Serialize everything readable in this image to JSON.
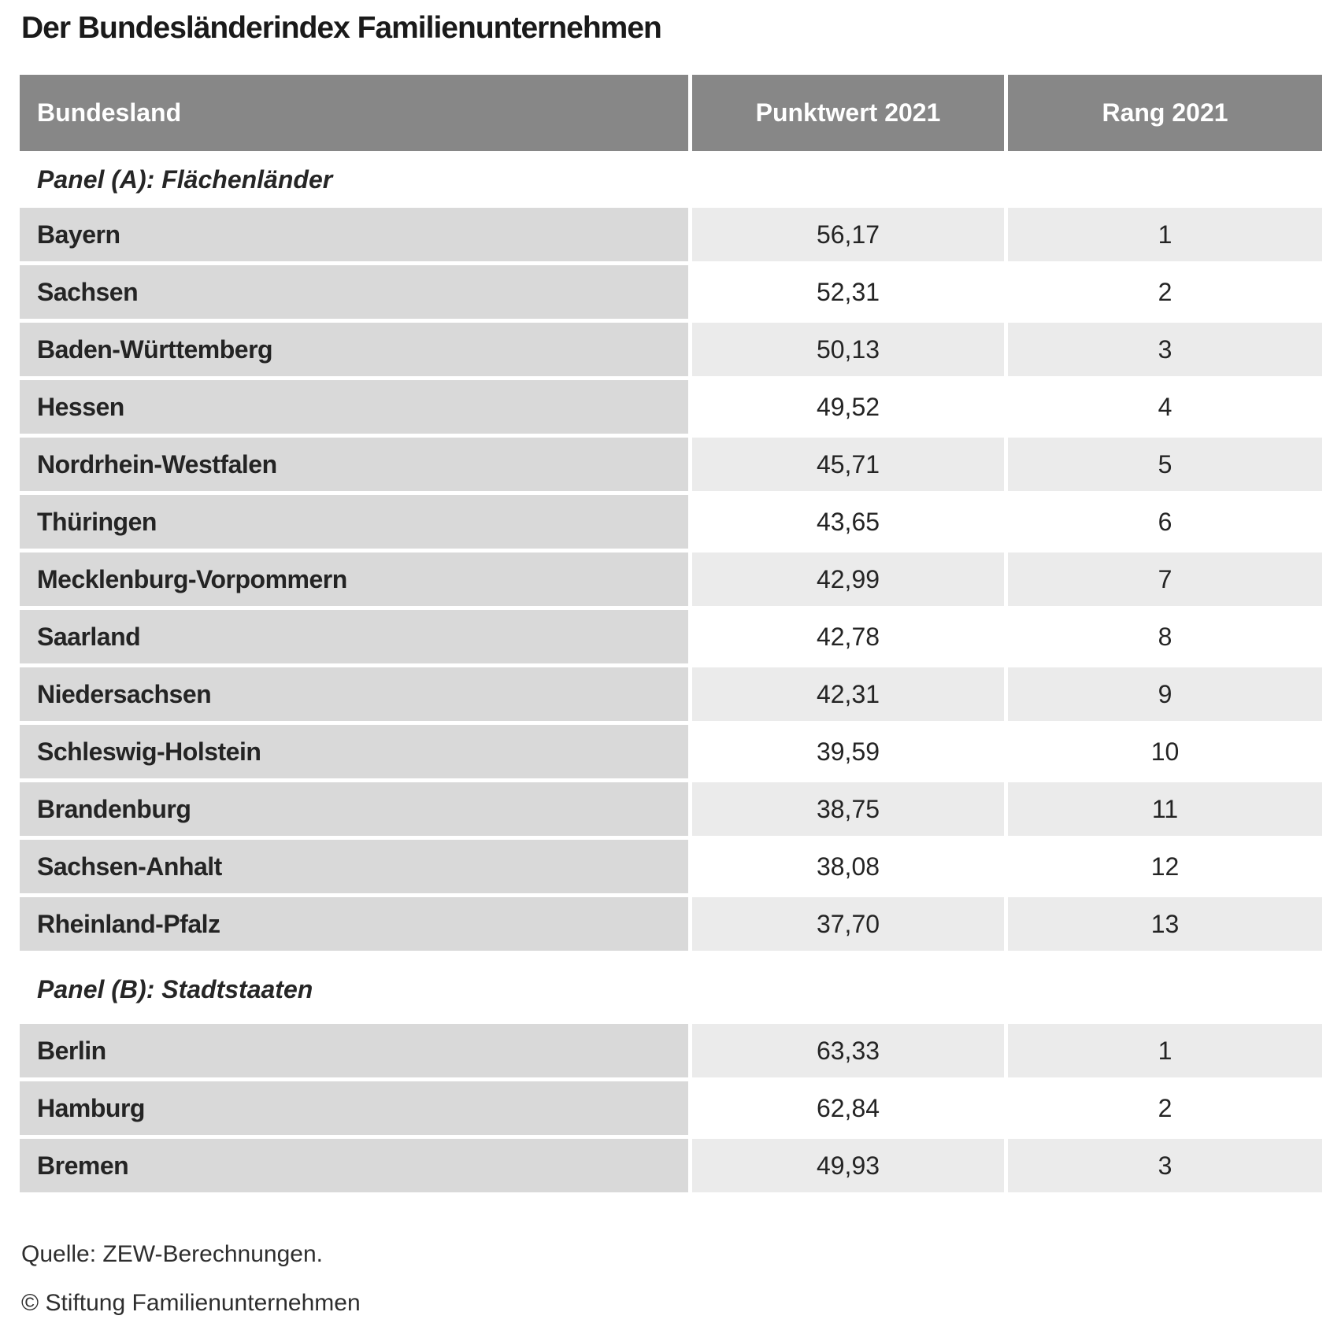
{
  "title": "Der Bundesländerindex Familienunternehmen",
  "chart_data": {
    "type": "table",
    "title": "Der Bundesländerindex Familienunternehmen",
    "columns": [
      "Bundesland",
      "Punktwert 2021",
      "Rang 2021"
    ],
    "panels": [
      {
        "label": "Panel (A): Flächenländer",
        "rows": [
          {
            "bundesland": "Bayern",
            "punktwert": "56,17",
            "rang": "1"
          },
          {
            "bundesland": "Sachsen",
            "punktwert": "52,31",
            "rang": "2"
          },
          {
            "bundesland": "Baden-Württemberg",
            "punktwert": "50,13",
            "rang": "3"
          },
          {
            "bundesland": "Hessen",
            "punktwert": "49,52",
            "rang": "4"
          },
          {
            "bundesland": "Nordrhein-Westfalen",
            "punktwert": "45,71",
            "rang": "5"
          },
          {
            "bundesland": "Thüringen",
            "punktwert": "43,65",
            "rang": "6"
          },
          {
            "bundesland": "Mecklenburg-Vorpommern",
            "punktwert": "42,99",
            "rang": "7"
          },
          {
            "bundesland": "Saarland",
            "punktwert": "42,78",
            "rang": "8"
          },
          {
            "bundesland": "Niedersachsen",
            "punktwert": "42,31",
            "rang": "9"
          },
          {
            "bundesland": "Schleswig-Holstein",
            "punktwert": "39,59",
            "rang": "10"
          },
          {
            "bundesland": "Brandenburg",
            "punktwert": "38,75",
            "rang": "11"
          },
          {
            "bundesland": "Sachsen-Anhalt",
            "punktwert": "38,08",
            "rang": "12"
          },
          {
            "bundesland": "Rheinland-Pfalz",
            "punktwert": "37,70",
            "rang": "13"
          }
        ]
      },
      {
        "label": "Panel (B): Stadtstaaten",
        "rows": [
          {
            "bundesland": "Berlin",
            "punktwert": "63,33",
            "rang": "1"
          },
          {
            "bundesland": "Hamburg",
            "punktwert": "62,84",
            "rang": "2"
          },
          {
            "bundesland": "Bremen",
            "punktwert": "49,93",
            "rang": "3"
          }
        ]
      }
    ],
    "layout": {
      "row_shading": "name column constant gray; value columns alternate gray/white starting gray"
    }
  },
  "footer": {
    "source": "Quelle: ZEW-Berechnungen.",
    "copyright": "© Stiftung Familienunternehmen"
  },
  "colors": {
    "header_bg": "#878787",
    "header_text": "#ffffff",
    "name_cell_bg": "#d9d9d9",
    "value_cell_shaded_bg": "#ebebeb",
    "value_cell_plain_bg": "#ffffff",
    "body_text": "#242424"
  }
}
